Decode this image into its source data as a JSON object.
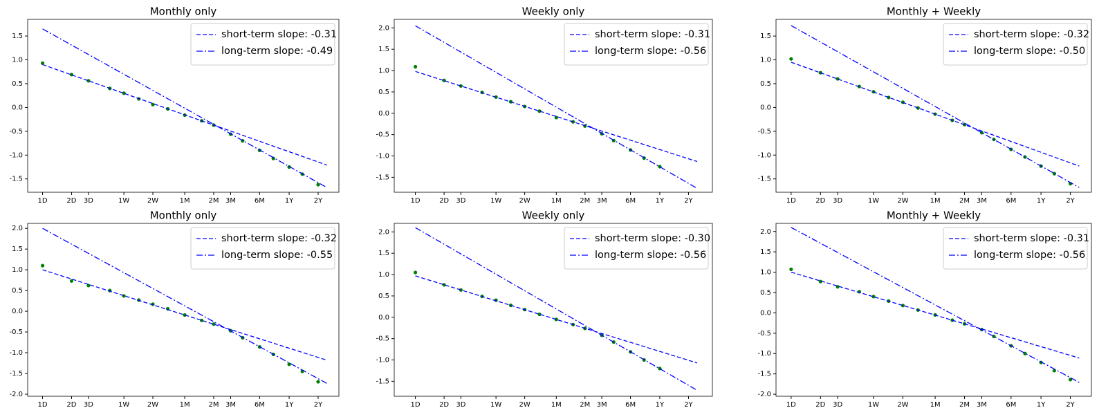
{
  "chart_data": [
    {
      "type": "scatter",
      "title": "Monthly only",
      "xscale": "log",
      "xlim": [
        0.7,
        1200
      ],
      "xticks": [
        {
          "value": 1,
          "label": "1D"
        },
        {
          "value": 2,
          "label": "2D"
        },
        {
          "value": 3,
          "label": "3D"
        },
        {
          "value": 7,
          "label": "1W"
        },
        {
          "value": 14,
          "label": "2W"
        },
        {
          "value": 30,
          "label": "1M"
        },
        {
          "value": 60,
          "label": "2M"
        },
        {
          "value": 90,
          "label": "3M"
        },
        {
          "value": 180,
          "label": "6M"
        },
        {
          "value": 365,
          "label": "1Y"
        },
        {
          "value": 730,
          "label": "2Y"
        }
      ],
      "ylim": [
        -1.78,
        1.85
      ],
      "yticks": [
        -1.5,
        {
          "value": -1,
          "label": "-1.0"
        },
        -0.5,
        {
          "value": 0,
          "label": "0.0"
        },
        0.5,
        {
          "value": 1,
          "label": "1.0"
        },
        1.5
      ],
      "legend": "upper right",
      "points": {
        "color": "#008000",
        "x": [
          1,
          2,
          3,
          5,
          7,
          10,
          14,
          20,
          30,
          45,
          60,
          90,
          120,
          180,
          250,
          365,
          500,
          730
        ],
        "values": [
          0.93,
          0.69,
          0.56,
          0.4,
          0.3,
          0.18,
          0.06,
          -0.03,
          -0.16,
          -0.28,
          -0.37,
          -0.56,
          -0.7,
          -0.9,
          -1.07,
          -1.25,
          -1.4,
          -1.62
        ]
      },
      "series": [
        {
          "name": "short-term slope: -0.31",
          "color": "#0000ff",
          "linestyle": "--",
          "x": [
            1,
            900
          ],
          "values": [
            0.9,
            -1.21
          ]
        },
        {
          "name": "long-term slope: -0.49",
          "color": "#0000ff",
          "linestyle": "-.",
          "x": [
            1,
            900
          ],
          "values": [
            1.65,
            -1.68
          ]
        }
      ]
    },
    {
      "type": "scatter",
      "title": "Weekly only",
      "xscale": "log",
      "xlim": [
        0.6,
        1300
      ],
      "xticks": [
        {
          "value": 1,
          "label": "1D"
        },
        {
          "value": 2,
          "label": "2D"
        },
        {
          "value": 3,
          "label": "3D"
        },
        {
          "value": 7,
          "label": "1W"
        },
        {
          "value": 14,
          "label": "2W"
        },
        {
          "value": 30,
          "label": "1M"
        },
        {
          "value": 60,
          "label": "2M"
        },
        {
          "value": 90,
          "label": "3M"
        },
        {
          "value": 180,
          "label": "6M"
        },
        {
          "value": 365,
          "label": "1Y"
        },
        {
          "value": 730,
          "label": "2Y"
        }
      ],
      "ylim": [
        -1.85,
        2.2
      ],
      "yticks": [
        -1.5,
        {
          "value": -1,
          "label": "-1.0"
        },
        -0.5,
        {
          "value": 0,
          "label": "0.0"
        },
        0.5,
        {
          "value": 1,
          "label": "1.0"
        },
        1.5,
        {
          "value": 2,
          "label": "2.0"
        }
      ],
      "legend": "upper right",
      "points": {
        "color": "#008000",
        "x": [
          1,
          2,
          3,
          5,
          7,
          10,
          14,
          20,
          30,
          45,
          60,
          90,
          120,
          180,
          250,
          365
        ],
        "values": [
          1.09,
          0.77,
          0.64,
          0.49,
          0.38,
          0.27,
          0.16,
          0.05,
          -0.1,
          -0.2,
          -0.3,
          -0.48,
          -0.64,
          -0.86,
          -1.05,
          -1.25
        ]
      },
      "series": [
        {
          "name": "short-term slope: -0.31",
          "color": "#0000ff",
          "linestyle": "--",
          "x": [
            1,
            900
          ],
          "values": [
            0.98,
            -1.13
          ]
        },
        {
          "name": "long-term slope: -0.56",
          "color": "#0000ff",
          "linestyle": "-.",
          "x": [
            1,
            900
          ],
          "values": [
            2.05,
            -1.76
          ]
        }
      ]
    },
    {
      "type": "scatter",
      "title": "Monthly + Weekly",
      "xscale": "log",
      "xlim": [
        0.7,
        1200
      ],
      "xticks": [
        {
          "value": 1,
          "label": "1D"
        },
        {
          "value": 2,
          "label": "2D"
        },
        {
          "value": 3,
          "label": "3D"
        },
        {
          "value": 7,
          "label": "1W"
        },
        {
          "value": 14,
          "label": "2W"
        },
        {
          "value": 30,
          "label": "1M"
        },
        {
          "value": 60,
          "label": "2M"
        },
        {
          "value": 90,
          "label": "3M"
        },
        {
          "value": 180,
          "label": "6M"
        },
        {
          "value": 365,
          "label": "1Y"
        },
        {
          "value": 730,
          "label": "2Y"
        }
      ],
      "ylim": [
        -1.78,
        1.85
      ],
      "yticks": [
        -1.5,
        {
          "value": -1,
          "label": "-1.0"
        },
        -0.5,
        {
          "value": 0,
          "label": "0.0"
        },
        0.5,
        {
          "value": 1,
          "label": "1.0"
        },
        1.5
      ],
      "legend": "upper right",
      "points": {
        "color": "#008000",
        "x": [
          1,
          2,
          3,
          5,
          7,
          10,
          14,
          20,
          30,
          45,
          60,
          90,
          120,
          180,
          250,
          365,
          500,
          730
        ],
        "values": [
          1.02,
          0.73,
          0.6,
          0.44,
          0.33,
          0.21,
          0.11,
          -0.01,
          -0.14,
          -0.27,
          -0.36,
          -0.53,
          -0.67,
          -0.88,
          -1.04,
          -1.23,
          -1.39,
          -1.6
        ]
      },
      "series": [
        {
          "name": "short-term slope: -0.32",
          "color": "#0000ff",
          "linestyle": "--",
          "x": [
            1,
            900
          ],
          "values": [
            0.95,
            -1.23
          ]
        },
        {
          "name": "long-term slope: -0.50",
          "color": "#0000ff",
          "linestyle": "-.",
          "x": [
            1,
            900
          ],
          "values": [
            1.72,
            -1.68
          ]
        }
      ]
    },
    {
      "type": "scatter",
      "title": "Monthly only",
      "xscale": "log",
      "xlim": [
        0.7,
        1200
      ],
      "xticks": [
        {
          "value": 1,
          "label": "1D"
        },
        {
          "value": 2,
          "label": "2D"
        },
        {
          "value": 3,
          "label": "3D"
        },
        {
          "value": 7,
          "label": "1W"
        },
        {
          "value": 14,
          "label": "2W"
        },
        {
          "value": 30,
          "label": "1M"
        },
        {
          "value": 60,
          "label": "2M"
        },
        {
          "value": 90,
          "label": "3M"
        },
        {
          "value": 180,
          "label": "6M"
        },
        {
          "value": 365,
          "label": "1Y"
        },
        {
          "value": 730,
          "label": "2Y"
        }
      ],
      "ylim": [
        -2.05,
        2.12
      ],
      "yticks": [
        {
          "value": -2,
          "label": "-2.0"
        },
        -1.5,
        {
          "value": -1,
          "label": "-1.0"
        },
        -0.5,
        {
          "value": 0,
          "label": "0.0"
        },
        0.5,
        {
          "value": 1,
          "label": "1.0"
        },
        1.5,
        {
          "value": 2,
          "label": "2.0"
        }
      ],
      "legend": "upper right",
      "points": {
        "color": "#008000",
        "x": [
          1,
          2,
          3,
          5,
          7,
          10,
          14,
          20,
          30,
          45,
          60,
          90,
          120,
          180,
          250,
          365,
          500,
          730
        ],
        "values": [
          1.1,
          0.73,
          0.62,
          0.5,
          0.37,
          0.27,
          0.17,
          0.06,
          -0.09,
          -0.22,
          -0.31,
          -0.47,
          -0.64,
          -0.86,
          -1.04,
          -1.28,
          -1.45,
          -1.7
        ]
      },
      "series": [
        {
          "name": "short-term slope: -0.32",
          "color": "#0000ff",
          "linestyle": "--",
          "x": [
            1,
            900
          ],
          "values": [
            1.0,
            -1.18
          ]
        },
        {
          "name": "long-term slope: -0.55",
          "color": "#0000ff",
          "linestyle": "-.",
          "x": [
            1,
            900
          ],
          "values": [
            2.0,
            -1.74
          ]
        }
      ]
    },
    {
      "type": "scatter",
      "title": "Weekly only",
      "xscale": "log",
      "xlim": [
        0.6,
        1300
      ],
      "xticks": [
        {
          "value": 1,
          "label": "1D"
        },
        {
          "value": 2,
          "label": "2D"
        },
        {
          "value": 3,
          "label": "3D"
        },
        {
          "value": 7,
          "label": "1W"
        },
        {
          "value": 14,
          "label": "2W"
        },
        {
          "value": 30,
          "label": "1M"
        },
        {
          "value": 60,
          "label": "2M"
        },
        {
          "value": 90,
          "label": "3M"
        },
        {
          "value": 180,
          "label": "6M"
        },
        {
          "value": 365,
          "label": "1Y"
        },
        {
          "value": 730,
          "label": "2Y"
        }
      ],
      "ylim": [
        -1.85,
        2.2
      ],
      "yticks": [
        -1.5,
        {
          "value": -1,
          "label": "-1.0"
        },
        -0.5,
        {
          "value": 0,
          "label": "0.0"
        },
        0.5,
        {
          "value": 1,
          "label": "1.0"
        },
        1.5,
        {
          "value": 2,
          "label": "2.0"
        }
      ],
      "legend": "upper right",
      "points": {
        "color": "#008000",
        "x": [
          1,
          2,
          3,
          5,
          7,
          10,
          14,
          20,
          30,
          45,
          60,
          90,
          120,
          180,
          250,
          365
        ],
        "values": [
          1.05,
          0.76,
          0.64,
          0.49,
          0.4,
          0.28,
          0.18,
          0.07,
          -0.05,
          -0.17,
          -0.26,
          -0.42,
          -0.58,
          -0.81,
          -1.0,
          -1.2
        ]
      },
      "series": [
        {
          "name": "short-term slope: -0.30",
          "color": "#0000ff",
          "linestyle": "--",
          "x": [
            1,
            900
          ],
          "values": [
            0.97,
            -1.07
          ]
        },
        {
          "name": "long-term slope: -0.56",
          "color": "#0000ff",
          "linestyle": "-.",
          "x": [
            1,
            900
          ],
          "values": [
            2.1,
            -1.71
          ]
        }
      ]
    },
    {
      "type": "scatter",
      "title": "Monthly + Weekly",
      "xscale": "log",
      "xlim": [
        0.7,
        1200
      ],
      "xticks": [
        {
          "value": 1,
          "label": "1D"
        },
        {
          "value": 2,
          "label": "2D"
        },
        {
          "value": 3,
          "label": "3D"
        },
        {
          "value": 7,
          "label": "1W"
        },
        {
          "value": 14,
          "label": "2W"
        },
        {
          "value": 30,
          "label": "1M"
        },
        {
          "value": 60,
          "label": "2M"
        },
        {
          "value": 90,
          "label": "3M"
        },
        {
          "value": 180,
          "label": "6M"
        },
        {
          "value": 365,
          "label": "1Y"
        },
        {
          "value": 730,
          "label": "2Y"
        }
      ],
      "ylim": [
        -2.05,
        2.2
      ],
      "yticks": [
        {
          "value": -2,
          "label": "-2.0"
        },
        -1.5,
        {
          "value": -1,
          "label": "-1.0"
        },
        -0.5,
        {
          "value": 0,
          "label": "0.0"
        },
        0.5,
        {
          "value": 1,
          "label": "1.0"
        },
        1.5,
        {
          "value": 2,
          "label": "2.0"
        }
      ],
      "legend": "upper right",
      "points": {
        "color": "#008000",
        "x": [
          1,
          2,
          3,
          5,
          7,
          10,
          14,
          20,
          30,
          45,
          60,
          90,
          120,
          180,
          250,
          365,
          500,
          730
        ],
        "values": [
          1.07,
          0.77,
          0.64,
          0.52,
          0.4,
          0.29,
          0.18,
          0.07,
          -0.05,
          -0.18,
          -0.27,
          -0.41,
          -0.58,
          -0.81,
          -1.0,
          -1.22,
          -1.42,
          -1.64
        ]
      },
      "series": [
        {
          "name": "short-term slope: -0.31",
          "color": "#0000ff",
          "linestyle": "--",
          "x": [
            1,
            900
          ],
          "values": [
            1.0,
            -1.11
          ]
        },
        {
          "name": "long-term slope: -0.56",
          "color": "#0000ff",
          "linestyle": "-.",
          "x": [
            1,
            900
          ],
          "values": [
            2.1,
            -1.71
          ]
        }
      ]
    }
  ]
}
